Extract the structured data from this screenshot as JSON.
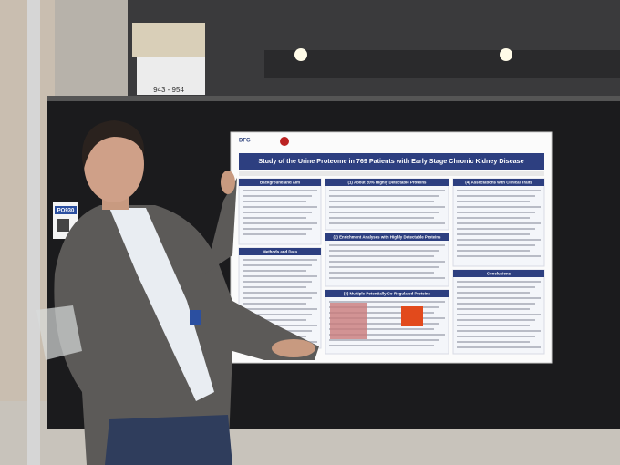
{
  "sign": {
    "room": "943 - 954"
  },
  "board_label": "PO930",
  "poster": {
    "logo": "DFG",
    "title": "Study of the Urine Proteome in 769 Patients with Early Stage Chronic Kidney Disease",
    "sections": [
      "Background and Aim",
      "Methods and Data",
      "(1) About 20% Highly Detectable Proteins",
      "(2) Enrichment Analyses with Highly Detectable Proteins",
      "(3) Multiple Potentially Co-Regulated Proteins",
      "(4) Associations with Clinical Traits",
      "Conclusions"
    ]
  }
}
